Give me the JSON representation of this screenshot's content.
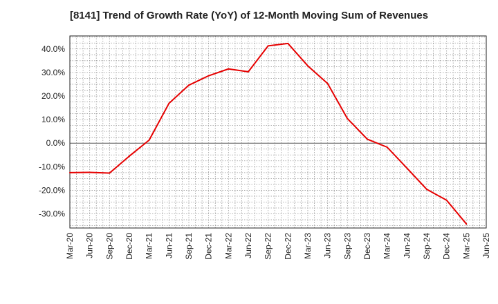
{
  "chart_data": {
    "type": "line",
    "title": "[8141]  Trend of Growth Rate (YoY) of 12-Month Moving Sum of Revenues",
    "xlabel": "",
    "ylabel": "",
    "x_ticks": [
      "Mar-20",
      "Jun-20",
      "Sep-20",
      "Dec-20",
      "Mar-21",
      "Jun-21",
      "Sep-21",
      "Dec-21",
      "Mar-22",
      "Jun-22",
      "Sep-22",
      "Dec-22",
      "Mar-23",
      "Jun-23",
      "Sep-23",
      "Dec-23",
      "Mar-24",
      "Jun-24",
      "Sep-24",
      "Dec-24",
      "Mar-25",
      "Jun-25"
    ],
    "y_ticks": [
      "40.0%",
      "30.0%",
      "20.0%",
      "10.0%",
      "0.0%",
      "-10.0%",
      "-20.0%",
      "-30.0%"
    ],
    "y_tick_values": [
      40,
      30,
      20,
      10,
      0,
      -10,
      -20,
      -30
    ],
    "ylim": [
      -36,
      45.5
    ],
    "grid": true,
    "series": [
      {
        "color": "#e60000",
        "x": [
          "Mar-20",
          "Jun-20",
          "Sep-20",
          "Dec-20",
          "Mar-21",
          "Jun-21",
          "Sep-21",
          "Dec-21",
          "Mar-22",
          "Jun-22",
          "Sep-22",
          "Dec-22",
          "Mar-23",
          "Jun-23",
          "Sep-23",
          "Dec-23",
          "Mar-24",
          "Jun-24",
          "Sep-24",
          "Dec-24",
          "Mar-25"
        ],
        "values": [
          -12.5,
          -12.4,
          -12.7,
          -5.5,
          1.3,
          16.9,
          24.6,
          28.6,
          31.5,
          30.3,
          41.3,
          42.3,
          32.8,
          25.3,
          10.4,
          1.7,
          -1.7,
          -10.6,
          -19.6,
          -24.2,
          -34.3
        ]
      }
    ]
  }
}
